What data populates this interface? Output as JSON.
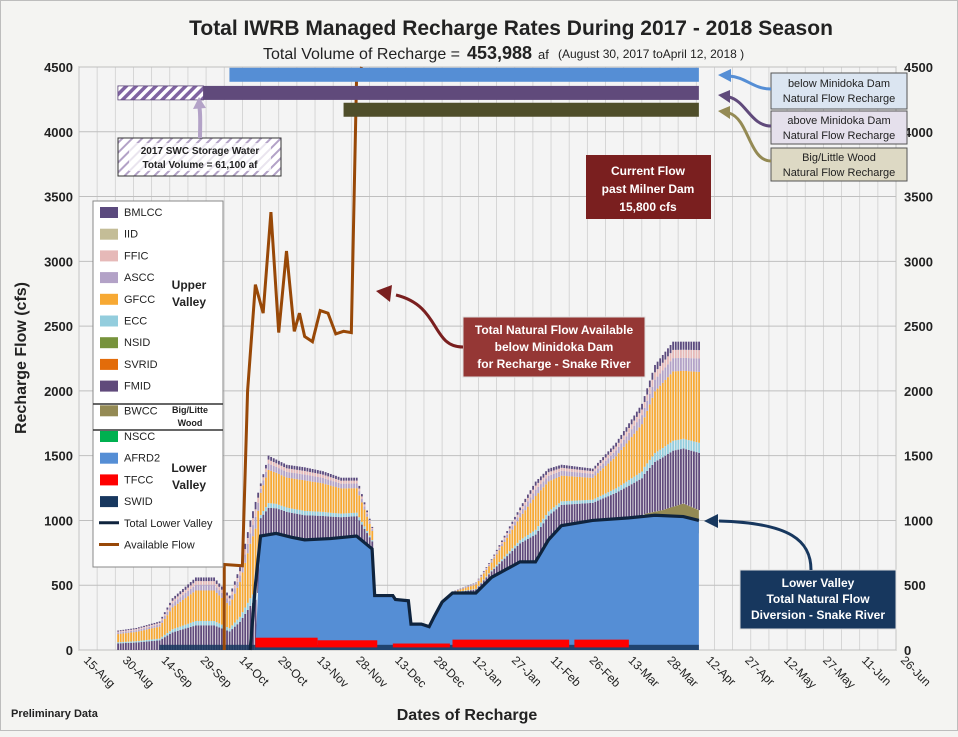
{
  "chart_data": {
    "type": "area",
    "title": "Total IWRB Managed Recharge Rates During 2017 - 2018 Season",
    "subtitle": {
      "prefix": "Total Volume of Recharge =",
      "value": "453,988",
      "unit": "af",
      "range": "(August 30, 2017 toApril 12, 2018 )"
    },
    "xlabel": "Dates of Recharge",
    "ylabel": "Recharge Flow (cfs)",
    "ylim": [
      0,
      4500
    ],
    "yticks": [
      0,
      500,
      1000,
      1500,
      2000,
      2500,
      3000,
      3500,
      4000,
      4500
    ],
    "xlim": [
      "2017-08-15",
      "2018-06-26"
    ],
    "xticks": [
      "15-Aug",
      "30-Aug",
      "14-Sep",
      "29-Sep",
      "14-Oct",
      "29-Oct",
      "13-Nov",
      "28-Nov",
      "13-Dec",
      "28-Dec",
      "12-Jan",
      "27-Jan",
      "11-Feb",
      "26-Feb",
      "13-Mar",
      "28-Mar",
      "12-Apr",
      "27-Apr",
      "12-May",
      "27-May",
      "11-Jun",
      "26-Jun"
    ],
    "grid": true,
    "footnote": "Preliminary Data",
    "legend": {
      "placement": "left",
      "items": [
        {
          "name": "BMLCC",
          "color": "#5b4a7e",
          "kind": "box"
        },
        {
          "name": "IID",
          "color": "#c4bd97",
          "kind": "box"
        },
        {
          "name": "FFIC",
          "color": "#e6b9b8",
          "kind": "box"
        },
        {
          "name": "ASCC",
          "color": "#b3a2c7",
          "kind": "box"
        },
        {
          "name": "GFCC",
          "color": "#f7a934",
          "kind": "box"
        },
        {
          "name": "ECC",
          "color": "#93cddd",
          "kind": "box"
        },
        {
          "name": "NSID",
          "color": "#77933c",
          "kind": "box"
        },
        {
          "name": "SVRID",
          "color": "#e36c0a",
          "kind": "box"
        },
        {
          "name": "FMID",
          "color": "#604a7b",
          "kind": "box"
        },
        {
          "name": "BWCC",
          "color": "#948a54",
          "kind": "box"
        },
        {
          "name": "NSCC",
          "color": "#00b050",
          "kind": "box"
        },
        {
          "name": "AFRD2",
          "color": "#558ed5",
          "kind": "box"
        },
        {
          "name": "TFCC",
          "color": "#ff0000",
          "kind": "box"
        },
        {
          "name": "SWID",
          "color": "#17375e",
          "kind": "box"
        },
        {
          "name": "Total Lower Valley",
          "color": "#0f243e",
          "kind": "line"
        },
        {
          "name": "Available Flow",
          "color": "#984807",
          "kind": "line"
        }
      ],
      "groups": [
        "Upper Valley",
        "Big/Litte Wood",
        "Lower Valley"
      ]
    },
    "series": [
      {
        "name": "AFRD2",
        "color": "#558ed5",
        "x": [
          "2017-10-16",
          "2017-10-22",
          "2017-10-24",
          "2017-10-30",
          "2017-11-05",
          "2017-11-10",
          "2017-11-20",
          "2017-11-30",
          "2017-12-06",
          "2017-12-07",
          "2017-12-14",
          "2017-12-15",
          "2017-12-20",
          "2017-12-21",
          "2017-12-25",
          "2017-12-28",
          "2017-12-30",
          "2018-01-02",
          "2018-01-06",
          "2018-01-15",
          "2018-01-21",
          "2018-02-01",
          "2018-02-07",
          "2018-02-12",
          "2018-02-17",
          "2018-03-01",
          "2018-03-15",
          "2018-03-25",
          "2018-04-05",
          "2018-04-11"
        ],
        "values": [
          0,
          0,
          880,
          900,
          870,
          850,
          860,
          880,
          780,
          420,
          420,
          390,
          380,
          200,
          200,
          180,
          260,
          370,
          440,
          440,
          560,
          680,
          680,
          850,
          960,
          1000,
          1020,
          1040,
          1030,
          1000
        ]
      },
      {
        "name": "Total Lower Valley",
        "color": "#0f243e",
        "x": [
          "2017-10-20",
          "2017-10-22",
          "2017-10-24",
          "2017-10-30",
          "2017-11-05",
          "2017-11-10",
          "2017-11-20",
          "2017-11-30",
          "2017-12-06",
          "2017-12-07",
          "2017-12-14",
          "2017-12-15",
          "2017-12-20",
          "2017-12-21",
          "2017-12-25",
          "2017-12-28",
          "2017-12-30",
          "2018-01-02",
          "2018-01-06",
          "2018-01-15",
          "2018-01-21",
          "2018-02-01",
          "2018-02-07",
          "2018-02-12",
          "2018-02-17",
          "2018-03-01",
          "2018-03-15",
          "2018-03-25",
          "2018-04-05",
          "2018-04-11"
        ],
        "values": [
          0,
          500,
          880,
          900,
          870,
          850,
          860,
          880,
          780,
          420,
          420,
          390,
          380,
          200,
          200,
          180,
          260,
          370,
          440,
          440,
          560,
          680,
          680,
          850,
          960,
          1000,
          1020,
          1040,
          1030,
          1000
        ]
      },
      {
        "name": "Available Flow",
        "color": "#984807",
        "x": [
          "2017-10-10",
          "2017-10-10",
          "2017-10-17",
          "2017-10-19",
          "2017-10-22",
          "2017-10-25",
          "2017-10-28",
          "2017-10-31",
          "2017-11-03",
          "2017-11-06",
          "2017-11-08",
          "2017-11-10",
          "2017-11-13",
          "2017-11-16",
          "2017-11-19",
          "2017-11-22",
          "2017-11-25",
          "2017-11-28",
          "2017-11-30",
          "2017-12-02",
          "2017-12-04",
          "2018-02-27"
        ],
        "values": [
          0,
          660,
          650,
          2000,
          2820,
          2600,
          3380,
          2450,
          3080,
          2460,
          2600,
          2420,
          2380,
          2620,
          2600,
          2440,
          2460,
          2450,
          4400,
          4700,
          4700,
          4700
        ]
      },
      {
        "name": "Upper Valley total",
        "color": "#f7a934",
        "x": [
          "2017-08-30",
          "2017-09-06",
          "2017-09-15",
          "2017-09-20",
          "2017-09-29",
          "2017-10-06",
          "2017-10-12",
          "2017-10-16",
          "2017-10-20",
          "2017-10-27",
          "2017-11-03",
          "2017-11-10",
          "2017-11-17",
          "2017-11-24",
          "2017-11-30",
          "2017-12-06",
          "2017-12-07",
          "2017-12-14",
          "2017-12-15",
          "2017-12-20",
          "2017-12-21",
          "2017-12-25",
          "2017-12-28",
          "2017-12-30",
          "2018-01-02",
          "2018-01-06",
          "2018-01-15",
          "2018-01-21",
          "2018-02-01",
          "2018-02-07",
          "2018-02-12",
          "2018-02-17",
          "2018-03-01",
          "2018-03-10",
          "2018-03-20",
          "2018-03-25",
          "2018-04-01",
          "2018-04-11"
        ],
        "values": [
          150,
          170,
          220,
          400,
          560,
          560,
          420,
          640,
          1000,
          1500,
          1430,
          1410,
          1380,
          1330,
          1330,
          950,
          420,
          420,
          390,
          380,
          200,
          200,
          180,
          260,
          370,
          450,
          520,
          700,
          1100,
          1300,
          1400,
          1430,
          1400,
          1600,
          1900,
          2200,
          2380,
          2380
        ]
      },
      {
        "name": "BWCC",
        "color": "#948a54",
        "x": [
          "2018-03-21",
          "2018-03-28",
          "2018-04-05",
          "2018-04-11"
        ],
        "values": [
          1050,
          1080,
          1130,
          1080
        ]
      },
      {
        "name": "TFCC",
        "color": "#ff0000",
        "x": [
          "2017-10-22",
          "2017-12-10",
          "2018-01-06",
          "2018-03-15"
        ],
        "values": [
          80,
          60,
          60,
          60
        ]
      }
    ],
    "horizontal_bars": [
      {
        "label": "below Minidoka Dam\nNatural Flow Recharge",
        "color": "#558ed5",
        "x": [
          "2017-10-12",
          "2018-04-11"
        ],
        "level": 4440
      },
      {
        "label": "above Minidoka Dam\nNatural Flow Recharge",
        "color": "#604a7b",
        "x": [
          "2017-08-30",
          "2018-04-11"
        ],
        "level": 4300
      },
      {
        "label": "Big/Little Wood\nNatural Flow Recharge",
        "color": "#4f4e2a",
        "x": [
          "2017-11-25",
          "2018-04-11"
        ],
        "level": 4170
      },
      {
        "label": "2017 SWC Storage Water\nTotal Volume = 61,100 af",
        "color": "#b3a2c7",
        "pattern": "hatch",
        "x": [
          "2017-08-30",
          "2017-10-02"
        ],
        "level": 4300
      }
    ],
    "annotations": [
      {
        "text": "Current Flow\npast Milner Dam\n15,800 cfs",
        "color": "#7a1f1f"
      },
      {
        "text": "Total Natural Flow Available\nbelow Minidoka Dam\nfor Recharge - Snake River",
        "color": "#953735"
      },
      {
        "text": "Lower Valley\nTotal Natural Flow\nDiversion -  Snake River",
        "color": "#17375e"
      }
    ]
  }
}
